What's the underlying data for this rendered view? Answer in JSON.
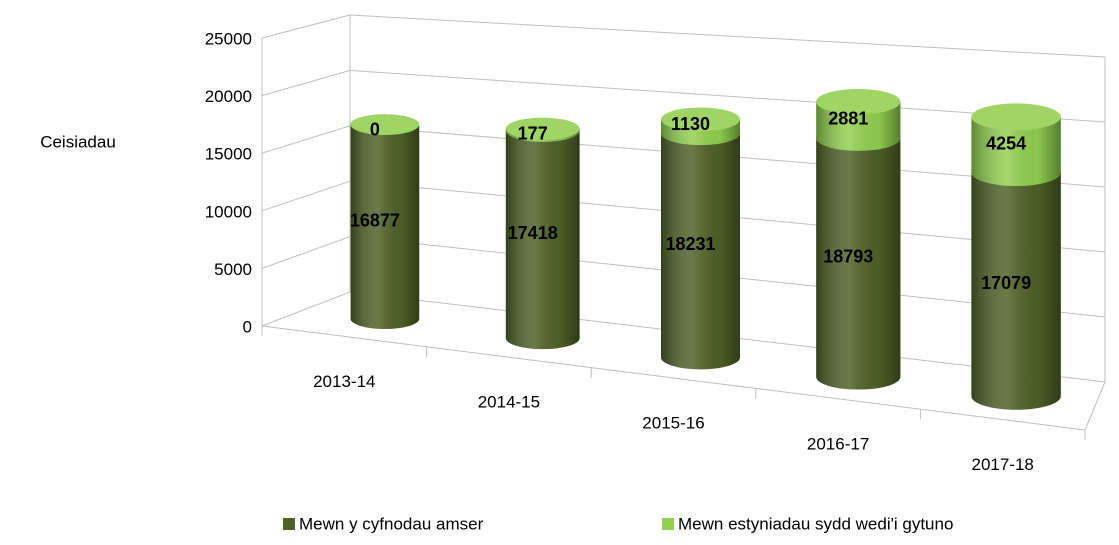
{
  "chart_data": {
    "type": "bar3d-stacked",
    "y_label": "Ceisiadau",
    "categories": [
      "2013-14",
      "2014-15",
      "2015-16",
      "2016-17",
      "2017-18"
    ],
    "series": [
      {
        "name": "Mewn y cyfnodau amser",
        "color": "#4f6228",
        "values": [
          16877,
          17418,
          18231,
          18793,
          17079
        ]
      },
      {
        "name": "Mewn estyniadau sydd wedi'i gytuno",
        "color": "#92d050",
        "values": [
          0,
          177,
          1130,
          2881,
          4254
        ]
      }
    ],
    "ylim": [
      0,
      25000
    ],
    "yticks": [
      0,
      5000,
      10000,
      15000,
      20000,
      25000
    ],
    "grid": true,
    "legend": "bottom"
  }
}
